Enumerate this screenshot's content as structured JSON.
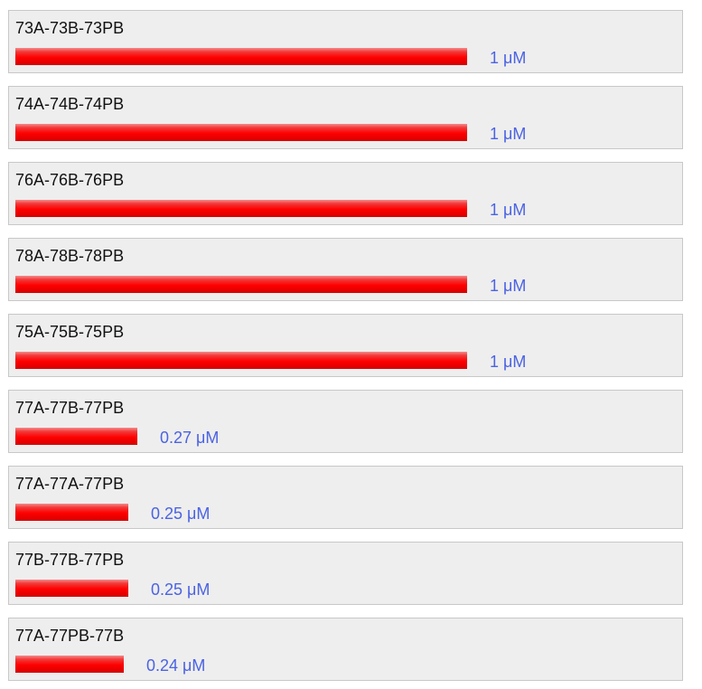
{
  "chart_data": {
    "type": "bar",
    "orientation": "horizontal",
    "unit": "μM",
    "xlim": [
      0,
      1
    ],
    "categories": [
      "73A-73B-73PB",
      "74A-74B-74PB",
      "76A-76B-76PB",
      "78A-78B-78PB",
      "75A-75B-75PB",
      "77A-77B-77PB",
      "77A-77A-77PB",
      "77B-77B-77PB",
      "77A-77PB-77B"
    ],
    "values": [
      1,
      1,
      1,
      1,
      1,
      0.27,
      0.25,
      0.25,
      0.24
    ],
    "value_labels": [
      "1 μM",
      "1 μM",
      "1 μM",
      "1 μM",
      "1 μM",
      "0.27 μM",
      "0.25 μM",
      "0.25 μM",
      "0.24 μM"
    ],
    "bar_color": "#ff0000",
    "value_label_color": "#4b63e3",
    "row_background": "#eeeeee",
    "row_border": "#c8c8c8"
  }
}
